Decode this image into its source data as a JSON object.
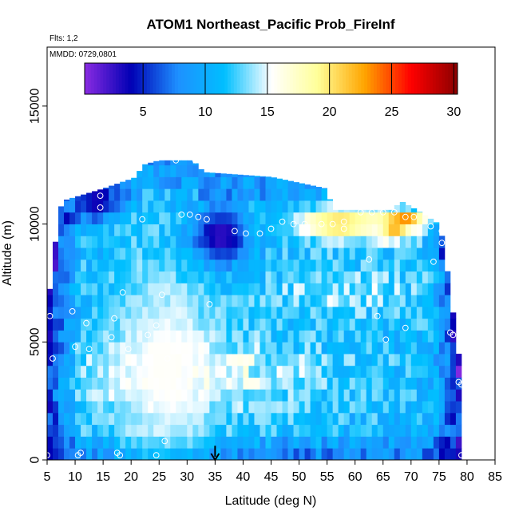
{
  "chart_data": {
    "type": "heatmap",
    "title": "ATOM1 Northeast_Pacific Prob_FireInf",
    "subtitle": "Flts: 1,2",
    "annotation": "MMDD: 0729,0801",
    "xlabel": "Latitude (deg N)",
    "ylabel": "Altitude (m)",
    "xlim": [
      5,
      85
    ],
    "ylim": [
      0,
      17500
    ],
    "x_ticks": [
      5,
      10,
      15,
      20,
      25,
      30,
      35,
      40,
      45,
      50,
      55,
      60,
      65,
      70,
      75,
      80,
      85
    ],
    "y_ticks": [
      0,
      5000,
      10000,
      15000
    ],
    "colorbar": {
      "range": [
        0.3,
        30.3
      ],
      "ticks": [
        5,
        10,
        15,
        20,
        25,
        30
      ],
      "colors": [
        "#8a2be2",
        "#0000b4",
        "#1e90ff",
        "#00bfff",
        "#ffffff",
        "#ffff99",
        "#ffa500",
        "#ff0000",
        "#8b0000"
      ]
    },
    "arrow_marker": {
      "x": 35,
      "y_top": 600,
      "y_bottom": 0
    },
    "grid_cell": {
      "dx": 1,
      "dy": 500
    },
    "x_extent": [
      5,
      79
    ],
    "profile_top": [
      {
        "lat": 5,
        "alt": 6500
      },
      {
        "lat": 6,
        "alt": 8000
      },
      {
        "lat": 7,
        "alt": 10500
      },
      {
        "lat": 8,
        "alt": 11000
      },
      {
        "lat": 15,
        "alt": 11500
      },
      {
        "lat": 21,
        "alt": 12000
      },
      {
        "lat": 22,
        "alt": 12500
      },
      {
        "lat": 25,
        "alt": 12700
      },
      {
        "lat": 31,
        "alt": 12700
      },
      {
        "lat": 33,
        "alt": 12200
      },
      {
        "lat": 45,
        "alt": 12000
      },
      {
        "lat": 55,
        "alt": 11500
      },
      {
        "lat": 56,
        "alt": 10600
      },
      {
        "lat": 67,
        "alt": 10600
      },
      {
        "lat": 68,
        "alt": 11000
      },
      {
        "lat": 71,
        "alt": 10600
      },
      {
        "lat": 75,
        "alt": 10000
      },
      {
        "lat": 76,
        "alt": 9000
      },
      {
        "lat": 77,
        "alt": 7000
      },
      {
        "lat": 78,
        "alt": 5500
      },
      {
        "lat": 79,
        "alt": 3500
      }
    ],
    "hotspots": [
      {
        "lat": 62,
        "alt": 10150,
        "dlat": 14,
        "dalt": 900,
        "value": 17
      },
      {
        "lat": 57,
        "alt": 10000,
        "dlat": 5,
        "dalt": 500,
        "value": 21
      },
      {
        "lat": 69,
        "alt": 10100,
        "dlat": 3,
        "dalt": 300,
        "value": 26
      },
      {
        "lat": 67,
        "alt": 9800,
        "dlat": 2,
        "dalt": 500,
        "value": 22
      },
      {
        "lat": 26,
        "alt": 4000,
        "dlat": 10,
        "dalt": 4500,
        "value": 15.5
      },
      {
        "lat": 14,
        "alt": 11000,
        "dlat": 3,
        "dalt": 800,
        "value": 3
      },
      {
        "lat": 36,
        "alt": 9500,
        "dlat": 5,
        "dalt": 1200,
        "value": 2.5
      }
    ],
    "obs_points": [
      {
        "lat": 5,
        "alt": 200
      },
      {
        "lat": 5.5,
        "alt": 6100
      },
      {
        "lat": 6,
        "alt": 4300
      },
      {
        "lat": 9.5,
        "alt": 6300
      },
      {
        "lat": 10,
        "alt": 4800
      },
      {
        "lat": 10.5,
        "alt": 200
      },
      {
        "lat": 11,
        "alt": 300
      },
      {
        "lat": 12,
        "alt": 5800
      },
      {
        "lat": 12.5,
        "alt": 4700
      },
      {
        "lat": 14.5,
        "alt": 11200
      },
      {
        "lat": 14.5,
        "alt": 10700
      },
      {
        "lat": 16.5,
        "alt": 5200
      },
      {
        "lat": 17,
        "alt": 6000
      },
      {
        "lat": 17.5,
        "alt": 300
      },
      {
        "lat": 18,
        "alt": 200
      },
      {
        "lat": 18.5,
        "alt": 7100
      },
      {
        "lat": 19.5,
        "alt": 4700
      },
      {
        "lat": 22,
        "alt": 10200
      },
      {
        "lat": 23,
        "alt": 5300
      },
      {
        "lat": 24.5,
        "alt": 200
      },
      {
        "lat": 24.5,
        "alt": 5700
      },
      {
        "lat": 25.5,
        "alt": 7000
      },
      {
        "lat": 26,
        "alt": 800
      },
      {
        "lat": 26.5,
        "alt": 4300
      },
      {
        "lat": 28,
        "alt": 12700
      },
      {
        "lat": 29,
        "alt": 10400
      },
      {
        "lat": 30.5,
        "alt": 10400
      },
      {
        "lat": 31.5,
        "alt": 12700
      },
      {
        "lat": 32,
        "alt": 10300
      },
      {
        "lat": 33.5,
        "alt": 10200
      },
      {
        "lat": 34,
        "alt": 6600
      },
      {
        "lat": 38.5,
        "alt": 9700
      },
      {
        "lat": 40.5,
        "alt": 9600
      },
      {
        "lat": 43,
        "alt": 9600
      },
      {
        "lat": 45,
        "alt": 9800
      },
      {
        "lat": 47,
        "alt": 10100
      },
      {
        "lat": 49,
        "alt": 10000
      },
      {
        "lat": 51,
        "alt": 10000
      },
      {
        "lat": 54,
        "alt": 10000
      },
      {
        "lat": 56,
        "alt": 10000
      },
      {
        "lat": 58,
        "alt": 10100
      },
      {
        "lat": 58,
        "alt": 9800
      },
      {
        "lat": 61,
        "alt": 10500
      },
      {
        "lat": 62.5,
        "alt": 8500
      },
      {
        "lat": 63,
        "alt": 10500
      },
      {
        "lat": 64,
        "alt": 6100
      },
      {
        "lat": 65,
        "alt": 10500
      },
      {
        "lat": 65.5,
        "alt": 5100
      },
      {
        "lat": 67,
        "alt": 11300
      },
      {
        "lat": 67,
        "alt": 10500
      },
      {
        "lat": 69,
        "alt": 10300
      },
      {
        "lat": 69,
        "alt": 5600
      },
      {
        "lat": 70.5,
        "alt": 10300
      },
      {
        "lat": 73.5,
        "alt": 9900
      },
      {
        "lat": 74,
        "alt": 8400
      },
      {
        "lat": 75.5,
        "alt": 9700
      },
      {
        "lat": 75.5,
        "alt": 9200
      },
      {
        "lat": 77,
        "alt": 5400
      },
      {
        "lat": 77.5,
        "alt": 5300
      },
      {
        "lat": 78.5,
        "alt": 3300
      },
      {
        "lat": 79,
        "alt": 3200
      },
      {
        "lat": 79,
        "alt": 200
      }
    ]
  }
}
